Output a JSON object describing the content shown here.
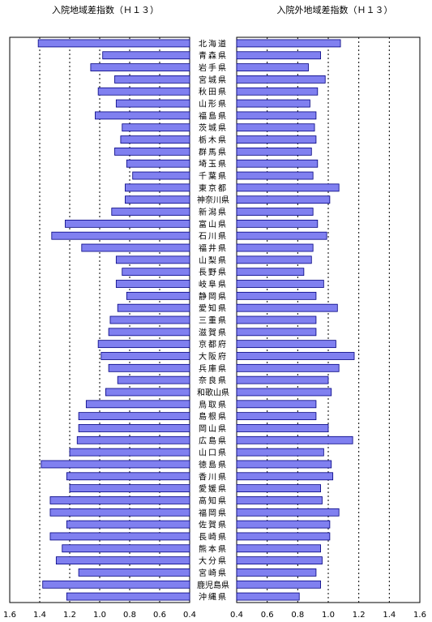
{
  "chart_data": [
    {
      "type": "bar",
      "orientation": "horizontal",
      "direction": "reversed",
      "title": "入院地域差指数（Ｈ１３）",
      "xlim": [
        0.4,
        1.6
      ],
      "ticks": [
        "1.6",
        "1.4",
        "1.2",
        "1.0",
        "0.8",
        "0.6",
        "0.4"
      ],
      "tick_values": [
        1.6,
        1.4,
        1.2,
        1.0,
        0.8,
        0.6,
        0.4
      ],
      "grid": true,
      "values": [
        1.41,
        0.98,
        1.06,
        0.9,
        1.01,
        0.89,
        1.03,
        0.85,
        0.86,
        0.9,
        0.82,
        0.78,
        0.83,
        0.83,
        0.92,
        1.23,
        1.32,
        1.12,
        0.89,
        0.85,
        0.89,
        0.82,
        0.88,
        0.93,
        0.94,
        1.01,
        0.99,
        0.94,
        0.88,
        0.96,
        1.09,
        1.14,
        1.14,
        1.15,
        1.2,
        1.39,
        1.22,
        1.2,
        1.33,
        1.33,
        1.22,
        1.33,
        1.25,
        1.29,
        1.14,
        1.38,
        1.22
      ]
    },
    {
      "type": "bar",
      "orientation": "horizontal",
      "direction": "normal",
      "title": "入院外地域差指数（Ｈ１３）",
      "xlim": [
        0.4,
        1.6
      ],
      "ticks": [
        "0.4",
        "0.6",
        "0.8",
        "1.0",
        "1.2",
        "1.4",
        "1.6"
      ],
      "tick_values": [
        0.4,
        0.6,
        0.8,
        1.0,
        1.2,
        1.4,
        1.6
      ],
      "grid": true,
      "values": [
        1.08,
        0.95,
        0.87,
        0.98,
        0.93,
        0.88,
        0.92,
        0.91,
        0.92,
        0.89,
        0.93,
        0.9,
        1.07,
        1.01,
        0.9,
        0.93,
        0.99,
        0.9,
        0.89,
        0.84,
        0.97,
        0.92,
        1.06,
        0.92,
        0.92,
        1.05,
        1.17,
        1.07,
        1.0,
        1.02,
        0.92,
        0.92,
        1.0,
        1.16,
        0.97,
        1.02,
        1.03,
        0.95,
        0.96,
        1.07,
        1.01,
        1.01,
        0.95,
        0.96,
        0.92,
        0.95,
        0.81
      ]
    }
  ],
  "categories": [
    "北海道",
    "青森県",
    "岩手県",
    "宮城県",
    "秋田県",
    "山形県",
    "福島県",
    "茨城県",
    "栃木県",
    "群馬県",
    "埼玉県",
    "千葉県",
    "東京都",
    "神奈川県",
    "新潟県",
    "富山県",
    "石川県",
    "福井県",
    "山梨県",
    "長野県",
    "岐阜県",
    "静岡県",
    "愛知県",
    "三重県",
    "滋賀県",
    "京都府",
    "大阪府",
    "兵庫県",
    "奈良県",
    "和歌山県",
    "鳥取県",
    "島根県",
    "岡山県",
    "広島県",
    "山口県",
    "徳島県",
    "香川県",
    "愛媛県",
    "高知県",
    "福岡県",
    "佐賀県",
    "長崎県",
    "熊本県",
    "大分県",
    "宮崎県",
    "鹿児島県",
    "沖縄県"
  ],
  "colors": {
    "bar_fill": "#8080f0",
    "bar_stroke": "#000080",
    "grid": "#000000"
  }
}
